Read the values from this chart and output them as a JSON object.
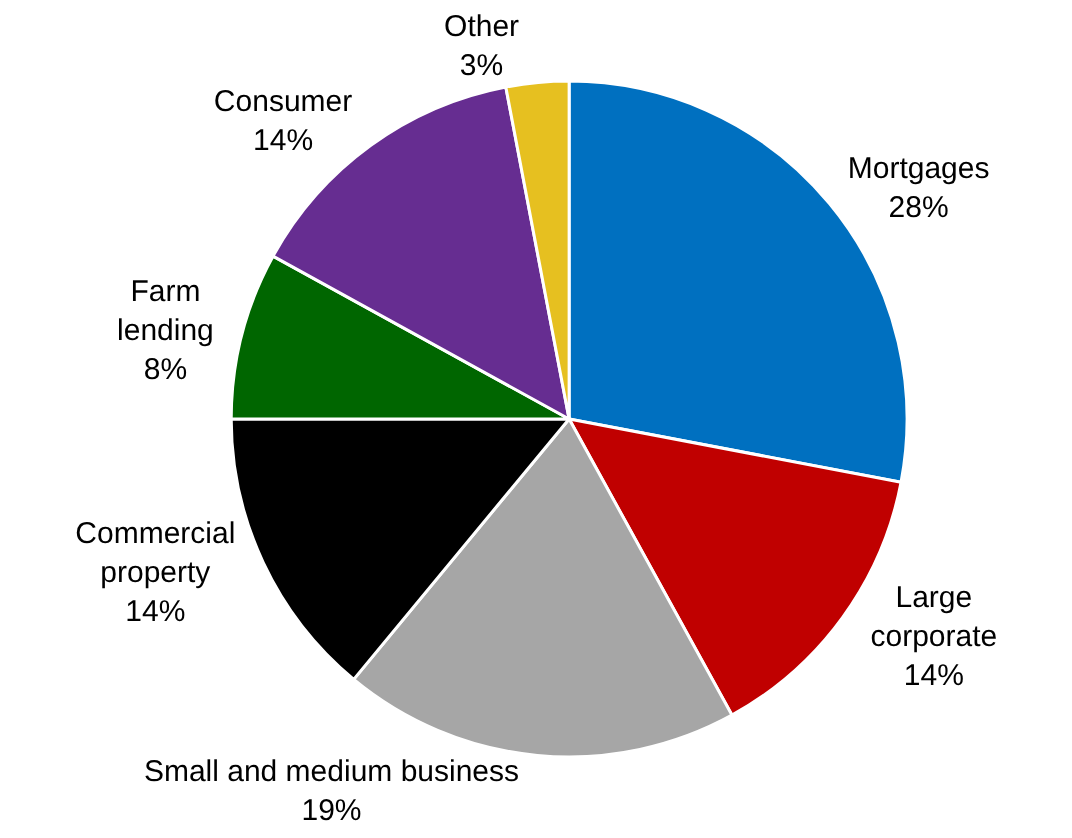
{
  "chart_data": {
    "type": "pie",
    "categories": [
      "Mortgages",
      "Large corporate",
      "Small and medium business",
      "Commercial property",
      "Farm lending",
      "Consumer",
      "Other"
    ],
    "values": [
      28,
      14,
      19,
      14,
      8,
      14,
      3
    ],
    "value_labels": [
      "28%",
      "14%",
      "19%",
      "14%",
      "8%",
      "14%",
      "3%"
    ],
    "colors": [
      "#0070c0",
      "#c00000",
      "#a6a6a6",
      "#000000",
      "#006600",
      "#662d91",
      "#e6c020"
    ],
    "legend": false
  }
}
